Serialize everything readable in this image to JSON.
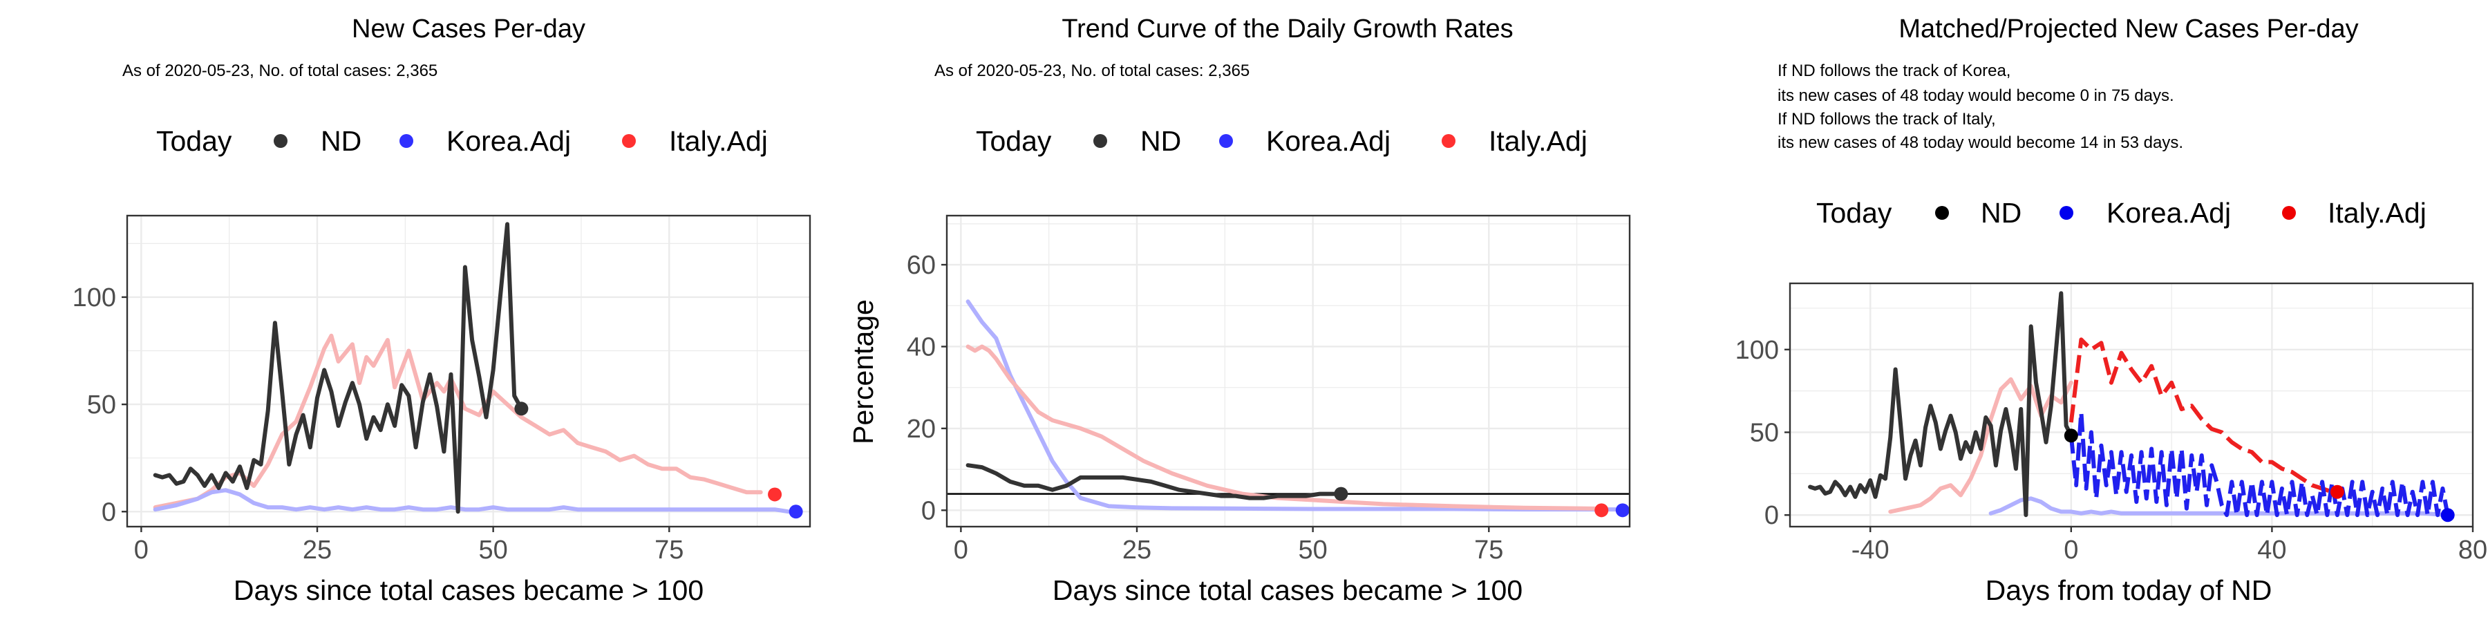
{
  "chart_data": [
    {
      "type": "line",
      "title": "New Cases Per-day",
      "subtitle": "As of 2020-05-23, No. of total cases: 2,365",
      "xlabel": "Days since total cases became > 100",
      "ylabel": "",
      "xlim": [
        -2,
        95
      ],
      "ylim": [
        -7,
        138
      ],
      "xticks": [
        0,
        25,
        50,
        75
      ],
      "yticks": [
        0,
        50,
        100
      ],
      "xtick_labels": [
        "0",
        "25",
        "50",
        "75"
      ],
      "ytick_labels": [
        "0",
        "50",
        "100"
      ],
      "grid": true,
      "legend": {
        "position": "top",
        "title": "Today",
        "labels": [
          "ND",
          "Korea.Adj",
          "Italy.Adj"
        ],
        "colors": [
          "#333333",
          "#3030ff",
          "#ff3030"
        ]
      },
      "series": [
        {
          "name": "Italy.Adj",
          "color": "#f8b4b4",
          "x": [
            2,
            5,
            8,
            10,
            12,
            14,
            16,
            18,
            20,
            22,
            24,
            26,
            27,
            28,
            30,
            31,
            32,
            33,
            35,
            36,
            38,
            40,
            42,
            43,
            44,
            46,
            48,
            50,
            52,
            54,
            56,
            58,
            60,
            62,
            64,
            66,
            68,
            70,
            72,
            74,
            76,
            78,
            80,
            82,
            84,
            86,
            88
          ],
          "y": [
            2,
            4,
            6,
            10,
            16,
            18,
            12,
            22,
            36,
            42,
            58,
            76,
            82,
            70,
            78,
            60,
            72,
            68,
            80,
            58,
            75,
            52,
            60,
            56,
            62,
            48,
            45,
            56,
            50,
            44,
            40,
            36,
            38,
            32,
            30,
            28,
            24,
            26,
            22,
            20,
            20,
            16,
            15,
            13,
            11,
            9,
            9
          ]
        },
        {
          "name": "Korea.Adj",
          "color": "#b0b0ff",
          "x": [
            2,
            5,
            8,
            10,
            12,
            14,
            16,
            18,
            20,
            22,
            24,
            26,
            28,
            30,
            32,
            34,
            36,
            38,
            40,
            42,
            44,
            46,
            48,
            50,
            52,
            54,
            56,
            58,
            60,
            62,
            64,
            66,
            68,
            70,
            72,
            74,
            76,
            78,
            80,
            82,
            84,
            86,
            88,
            90,
            92
          ],
          "y": [
            1,
            3,
            6,
            9,
            10,
            8,
            4,
            2,
            2,
            1,
            2,
            1,
            2,
            1,
            2,
            1,
            1,
            2,
            1,
            1,
            2,
            1,
            1,
            2,
            1,
            1,
            1,
            1,
            2,
            1,
            1,
            1,
            1,
            1,
            1,
            1,
            1,
            1,
            1,
            1,
            1,
            1,
            1,
            1,
            0
          ]
        },
        {
          "name": "ND",
          "color": "#333333",
          "x": [
            2,
            3,
            4,
            5,
            6,
            7,
            8,
            9,
            10,
            11,
            12,
            13,
            14,
            15,
            16,
            17,
            18,
            19,
            20,
            21,
            22,
            23,
            24,
            25,
            26,
            27,
            28,
            29,
            30,
            31,
            32,
            33,
            34,
            35,
            36,
            37,
            38,
            39,
            40,
            41,
            42,
            43,
            44,
            45,
            46,
            47,
            48,
            49,
            50,
            51,
            52,
            53,
            54
          ],
          "y": [
            17,
            16,
            17,
            13,
            14,
            20,
            17,
            12,
            17,
            11,
            18,
            14,
            21,
            11,
            24,
            22,
            47,
            88,
            56,
            22,
            36,
            45,
            30,
            53,
            66,
            56,
            40,
            51,
            60,
            50,
            34,
            44,
            38,
            50,
            40,
            59,
            54,
            30,
            51,
            64,
            49,
            28,
            64,
            0,
            114,
            80,
            63,
            44,
            66,
            100,
            134,
            54,
            48
          ]
        }
      ],
      "endpoints": [
        {
          "name": "ND",
          "x": 54,
          "y": 48,
          "color": "#333333"
        },
        {
          "name": "Italy.Adj",
          "x": 90,
          "y": 8,
          "color": "#ff3030"
        },
        {
          "name": "Korea.Adj",
          "x": 93,
          "y": 0,
          "color": "#3030ff"
        }
      ]
    },
    {
      "type": "line",
      "title": "Trend Curve of the Daily Growth Rates",
      "subtitle": "As of 2020-05-23, No. of total cases: 2,365",
      "xlabel": "Days since total cases became > 100",
      "ylabel": "Percentage",
      "xlim": [
        -2,
        95
      ],
      "ylim": [
        -4,
        72
      ],
      "xticks": [
        0,
        25,
        50,
        75
      ],
      "yticks": [
        0,
        20,
        40,
        60
      ],
      "xtick_labels": [
        "0",
        "25",
        "50",
        "75"
      ],
      "ytick_labels": [
        "0",
        "20",
        "40",
        "60"
      ],
      "hline": 4,
      "grid": true,
      "legend": {
        "position": "top",
        "title": "Today",
        "labels": [
          "ND",
          "Korea.Adj",
          "Italy.Adj"
        ],
        "colors": [
          "#333333",
          "#3030ff",
          "#ff3030"
        ]
      },
      "series": [
        {
          "name": "Korea.Adj",
          "color": "#b0b0ff",
          "x": [
            1,
            3,
            5,
            7,
            9,
            11,
            13,
            15,
            17,
            19,
            21,
            25,
            30,
            40,
            50,
            60,
            70,
            80,
            90,
            93
          ],
          "y": [
            51,
            46,
            42,
            33,
            26,
            19,
            12,
            7,
            3,
            2,
            1,
            0.7,
            0.5,
            0.4,
            0.3,
            0.3,
            0.3,
            0.2,
            0.2,
            0.2
          ]
        },
        {
          "name": "Italy.Adj",
          "color": "#f8b4b4",
          "x": [
            1,
            2,
            3,
            4,
            5,
            7,
            9,
            11,
            13,
            15,
            17,
            20,
            23,
            26,
            30,
            35,
            40,
            45,
            50,
            55,
            60,
            70,
            80,
            90
          ],
          "y": [
            40,
            39,
            40,
            39,
            37,
            32,
            28,
            24,
            22,
            21,
            20,
            18,
            15,
            12,
            9,
            6,
            4,
            3,
            2.5,
            2,
            1.5,
            1,
            0.6,
            0.4
          ]
        },
        {
          "name": "ND",
          "color": "#333333",
          "x": [
            1,
            3,
            5,
            7,
            9,
            11,
            13,
            15,
            17,
            19,
            21,
            23,
            25,
            27,
            29,
            31,
            33,
            35,
            37,
            39,
            41,
            43,
            45,
            47,
            49,
            51,
            54
          ],
          "y": [
            11,
            10.5,
            9,
            7,
            6,
            6,
            5,
            6,
            8,
            8,
            8,
            8,
            7.5,
            7,
            6,
            5,
            4.5,
            4,
            3.5,
            3.5,
            3,
            3,
            3.5,
            3.5,
            3.5,
            4,
            4
          ]
        }
      ],
      "endpoints": [
        {
          "name": "ND",
          "x": 54,
          "y": 4,
          "color": "#333333"
        },
        {
          "name": "Italy.Adj",
          "x": 91,
          "y": 0,
          "color": "#ff3030"
        },
        {
          "name": "Korea.Adj",
          "x": 94,
          "y": 0,
          "color": "#3030ff"
        }
      ]
    },
    {
      "type": "line",
      "title": "Matched/Projected New Cases Per-day",
      "subtitle_lines": [
        "If ND follows the track of Korea,",
        "its new cases of 48 today would become 0 in 75 days.",
        "If ND follows the track of Italy,",
        "its new cases of 48 today would become 14 in 53 days."
      ],
      "xlabel": "Days from today of ND",
      "ylabel": "",
      "xlim": [
        -56,
        80
      ],
      "ylim": [
        -7,
        140
      ],
      "xticks": [
        -40,
        0,
        40,
        80
      ],
      "yticks": [
        0,
        50,
        100
      ],
      "xtick_labels": [
        "-40",
        "0",
        "40",
        "80"
      ],
      "ytick_labels": [
        "0",
        "50",
        "100"
      ],
      "grid": true,
      "legend": {
        "position": "top",
        "title": "Today",
        "labels": [
          "ND",
          "Korea.Adj",
          "Italy.Adj"
        ],
        "colors": [
          "#000000",
          "#0000ee",
          "#ee0000"
        ]
      },
      "series": [
        {
          "name": "Italy.Adj (past)",
          "color": "#f8b4b4",
          "x": [
            -36,
            -33,
            -30,
            -28,
            -26,
            -24,
            -22,
            -20,
            -18,
            -16,
            -14,
            -12,
            -10,
            -8,
            -6,
            -4,
            -2,
            0
          ],
          "y": [
            2,
            4,
            6,
            10,
            16,
            18,
            12,
            22,
            36,
            58,
            76,
            82,
            70,
            78,
            60,
            72,
            68,
            80
          ]
        },
        {
          "name": "Korea.Adj (past)",
          "color": "#b0b0ff",
          "x": [
            -16,
            -14,
            -12,
            -10,
            -8,
            -6,
            -4,
            -2,
            0,
            2,
            4,
            6,
            8,
            10,
            20,
            30,
            40,
            50,
            60,
            70,
            75
          ],
          "y": [
            1,
            3,
            6,
            9,
            10,
            8,
            4,
            2,
            2,
            1,
            2,
            1,
            2,
            1,
            1,
            1,
            1,
            1,
            1,
            1,
            0
          ]
        },
        {
          "name": "ND",
          "color": "#333333",
          "x": [
            -52,
            -51,
            -50,
            -49,
            -48,
            -47,
            -46,
            -45,
            -44,
            -43,
            -42,
            -41,
            -40,
            -39,
            -38,
            -37,
            -36,
            -35,
            -34,
            -33,
            -32,
            -31,
            -30,
            -29,
            -28,
            -27,
            -26,
            -25,
            -24,
            -23,
            -22,
            -21,
            -20,
            -19,
            -18,
            -17,
            -16,
            -15,
            -14,
            -13,
            -12,
            -11,
            -10,
            -9,
            -8,
            -7,
            -6,
            -5,
            -4,
            -3,
            -2,
            -1,
            0
          ],
          "y": [
            17,
            16,
            17,
            13,
            14,
            20,
            17,
            12,
            17,
            11,
            18,
            14,
            21,
            11,
            24,
            22,
            47,
            88,
            56,
            22,
            36,
            45,
            30,
            53,
            66,
            56,
            40,
            51,
            60,
            50,
            34,
            44,
            38,
            50,
            40,
            59,
            54,
            30,
            51,
            64,
            49,
            28,
            64,
            0,
            114,
            80,
            63,
            44,
            66,
            100,
            134,
            54,
            48
          ]
        },
        {
          "name": "Italy.Adj",
          "color": "#ee2020",
          "dashed": true,
          "x": [
            0,
            2,
            4,
            6,
            8,
            10,
            12,
            14,
            16,
            18,
            20,
            22,
            24,
            26,
            28,
            30,
            32,
            34,
            36,
            38,
            40,
            42,
            44,
            46,
            48,
            50,
            52,
            53
          ],
          "y": [
            56,
            106,
            100,
            104,
            80,
            98,
            88,
            80,
            90,
            72,
            80,
            64,
            66,
            58,
            52,
            50,
            44,
            40,
            38,
            32,
            32,
            28,
            26,
            22,
            18,
            16,
            14,
            14
          ]
        },
        {
          "name": "Korea.Adj",
          "color": "#2020ee",
          "dashed": true,
          "x": [
            0,
            1,
            2,
            3,
            4,
            5,
            6,
            7,
            8,
            9,
            10,
            11,
            12,
            13,
            14,
            15,
            16,
            17,
            18,
            19,
            20,
            21,
            22,
            23,
            24,
            25,
            26,
            27,
            28,
            29,
            30,
            31,
            32,
            33,
            34,
            35,
            36,
            37,
            38,
            39,
            40,
            41,
            42,
            43,
            44,
            45,
            46,
            47,
            48,
            49,
            50,
            51,
            52,
            53,
            54,
            55,
            56,
            57,
            58,
            59,
            60,
            61,
            62,
            63,
            64,
            65,
            66,
            67,
            68,
            69,
            70,
            71,
            72,
            73,
            74,
            75
          ],
          "y": [
            48,
            18,
            62,
            16,
            50,
            10,
            42,
            18,
            38,
            12,
            38,
            14,
            36,
            8,
            38,
            10,
            40,
            8,
            38,
            6,
            40,
            10,
            40,
            4,
            36,
            14,
            36,
            6,
            30,
            20,
            6,
            0,
            20,
            0,
            20,
            0,
            20,
            0,
            20,
            0,
            20,
            0,
            16,
            0,
            20,
            0,
            20,
            0,
            12,
            0,
            20,
            0,
            20,
            0,
            16,
            0,
            20,
            0,
            20,
            0,
            14,
            0,
            16,
            0,
            20,
            0,
            20,
            0,
            14,
            0,
            20,
            0,
            20,
            0,
            16,
            0
          ]
        }
      ],
      "endpoints": [
        {
          "name": "ND",
          "x": 0,
          "y": 48,
          "color": "#000000"
        },
        {
          "name": "Italy.Adj",
          "x": 53,
          "y": 14,
          "color": "#ee0000"
        },
        {
          "name": "Korea.Adj",
          "x": 75,
          "y": 0,
          "color": "#0000ee"
        }
      ]
    }
  ]
}
